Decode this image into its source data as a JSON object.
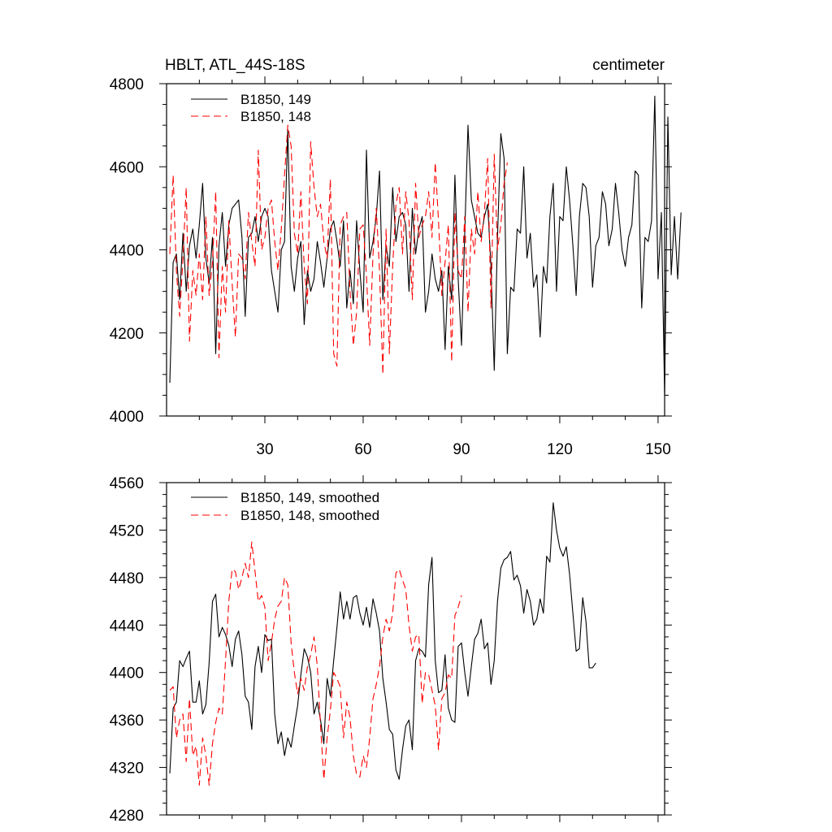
{
  "chart_data": [
    {
      "type": "line",
      "title": "HBLT, ATL_44S-18S",
      "units": "centimeter",
      "xlim": [
        0,
        152
      ],
      "ylim": [
        4000,
        4800
      ],
      "x_ticks": [
        30,
        60,
        90,
        120,
        150
      ],
      "x_tick_labels": [
        "30",
        "60",
        "90",
        "120",
        "150"
      ],
      "y_ticks": [
        4000,
        4200,
        4400,
        4600,
        4800
      ],
      "y_tick_labels": [
        "4000",
        "4200",
        "4400",
        "4600",
        "4800"
      ],
      "legend": "top-left",
      "series": [
        {
          "name": "B1850, 149",
          "color": "#000000",
          "style": "solid",
          "values": [
            4080,
            4370,
            4390,
            4280,
            4440,
            4300,
            4410,
            4450,
            4380,
            4460,
            4560,
            4380,
            4320,
            4430,
            4150,
            4410,
            4490,
            4360,
            4460,
            4500,
            4510,
            4520,
            4430,
            4240,
            4430,
            4440,
            4480,
            4420,
            4480,
            4500,
            4480,
            4350,
            4300,
            4250,
            4400,
            4420,
            4690,
            4360,
            4300,
            4380,
            4420,
            4220,
            4350,
            4300,
            4330,
            4420,
            4370,
            4310,
            4380,
            4450,
            4470,
            4420,
            4360,
            4470,
            4260,
            4350,
            4270,
            4470,
            4350,
            4250,
            4640,
            4380,
            4420,
            4480,
            4590,
            4280,
            4410,
            4360,
            4550,
            4420,
            4480,
            4490,
            4460,
            4300,
            4500,
            4390,
            4450,
            4480,
            4250,
            4300,
            4390,
            4330,
            4300,
            4350,
            4160,
            4360,
            4280,
            4580,
            4330,
            4170,
            4440,
            4700,
            4520,
            4480,
            4440,
            4430,
            4480,
            4510,
            4360,
            4110,
            4430,
            4680,
            4620,
            4150,
            4310,
            4300,
            4450,
            4440,
            4600,
            4380,
            4440,
            4310,
            4340,
            4190,
            4360,
            4320,
            4480,
            4560,
            4300,
            4480,
            4470,
            4600,
            4520,
            4410,
            4290,
            4480,
            4560,
            4550,
            4480,
            4310,
            4410,
            4430,
            4540,
            4510,
            4410,
            4450,
            4560,
            4490,
            4400,
            4360,
            4430,
            4460,
            4590,
            4580,
            4260,
            4430,
            4420,
            4470,
            4770,
            4330,
            4490,
            4050,
            4720,
            4340,
            4480,
            4330,
            4490
          ]
        },
        {
          "name": "B1850, 148",
          "color": "#ff0000",
          "style": "dashed",
          "values": [
            4390,
            4580,
            4350,
            4240,
            4380,
            4550,
            4180,
            4350,
            4290,
            4390,
            4280,
            4480,
            4290,
            4370,
            4540,
            4140,
            4360,
            4250,
            4470,
            4320,
            4190,
            4390,
            4380,
            4330,
            4490,
            4420,
            4360,
            4640,
            4400,
            4430,
            4500,
            4520,
            4420,
            4350,
            4450,
            4580,
            4700,
            4650,
            4440,
            4390,
            4540,
            4360,
            4270,
            4660,
            4550,
            4480,
            4510,
            4420,
            4380,
            4570,
            4150,
            4120,
            4460,
            4480,
            4490,
            4300,
            4170,
            4250,
            4450,
            4460,
            4340,
            4170,
            4390,
            4500,
            4350,
            4100,
            4450,
            4150,
            4360,
            4510,
            4550,
            4390,
            4540,
            4470,
            4280,
            4560,
            4430,
            4460,
            4480,
            4540,
            4430,
            4610,
            4470,
            4290,
            4370,
            4460,
            4130,
            4490,
            4350,
            4330,
            4480,
            4250,
            4450,
            4390,
            4540,
            4420,
            4490,
            4620,
            4260,
            4630,
            4400,
            4460,
            4560,
            4610
          ]
        }
      ]
    },
    {
      "type": "line",
      "xlim": [
        0,
        152
      ],
      "ylim": [
        4280,
        4560
      ],
      "y_ticks": [
        4280,
        4320,
        4360,
        4400,
        4440,
        4480,
        4520,
        4560
      ],
      "y_tick_labels": [
        "4280",
        "4320",
        "4360",
        "4400",
        "4440",
        "4480",
        "4520",
        "4560"
      ],
      "x_ticks": [
        30,
        60,
        90,
        120,
        150
      ],
      "legend": "top-left",
      "series": [
        {
          "name": "B1850, 149, smoothed",
          "color": "#000000",
          "style": "solid",
          "values": [
            4315,
            4370,
            4375,
            4410,
            4405,
            4412,
            4418,
            4375,
            4375,
            4393,
            4365,
            4373,
            4408,
            4460,
            4466,
            4430,
            4438,
            4432,
            4423,
            4405,
            4428,
            4435,
            4415,
            4380,
            4375,
            4352,
            4405,
            4422,
            4400,
            4432,
            4427,
            4428,
            4365,
            4340,
            4350,
            4330,
            4345,
            4337,
            4355,
            4372,
            4398,
            4420,
            4413,
            4400,
            4365,
            4375,
            4360,
            4340,
            4395,
            4380,
            4410,
            4438,
            4468,
            4445,
            4460,
            4445,
            4463,
            4465,
            4450,
            4440,
            4455,
            4438,
            4462,
            4450,
            4435,
            4395,
            4375,
            4352,
            4348,
            4318,
            4310,
            4335,
            4355,
            4360,
            4335,
            4410,
            4420,
            4418,
            4413,
            4474,
            4497,
            4410,
            4383,
            4385,
            4415,
            4370,
            4360,
            4358,
            4422,
            4425,
            4400,
            4380,
            4405,
            4428,
            4433,
            4445,
            4420,
            4425,
            4390,
            4410,
            4460,
            4488,
            4495,
            4497,
            4502,
            4478,
            4482,
            4473,
            4450,
            4470,
            4460,
            4440,
            4445,
            4462,
            4450,
            4498,
            4493,
            4543,
            4520,
            4505,
            4498,
            4506,
            4483,
            4450,
            4418,
            4420,
            4463,
            4443,
            4404,
            4404,
            4408
          ]
        },
        {
          "name": "B1850, 148, smoothed",
          "color": "#ff0000",
          "style": "dashed",
          "values": [
            4385,
            4388,
            4345,
            4360,
            4365,
            4325,
            4378,
            4330,
            4338,
            4305,
            4345,
            4330,
            4305,
            4340,
            4358,
            4370,
            4365,
            4410,
            4460,
            4487,
            4485,
            4470,
            4480,
            4492,
            4480,
            4510,
            4485,
            4460,
            4465,
            4455,
            4410,
            4425,
            4445,
            4456,
            4460,
            4480,
            4474,
            4425,
            4400,
            4382,
            4395,
            4385,
            4405,
            4415,
            4430,
            4406,
            4355,
            4310,
            4345,
            4368,
            4400,
            4395,
            4388,
            4345,
            4375,
            4362,
            4330,
            4314,
            4312,
            4330,
            4320,
            4345,
            4378,
            4390,
            4405,
            4430,
            4445,
            4435,
            4450,
            4484,
            4487,
            4478,
            4470,
            4440,
            4418,
            4430,
            4432,
            4374,
            4400,
            4398,
            4385,
            4372,
            4335,
            4378,
            4383,
            4398,
            4395,
            4448,
            4455,
            4465
          ]
        }
      ]
    }
  ]
}
